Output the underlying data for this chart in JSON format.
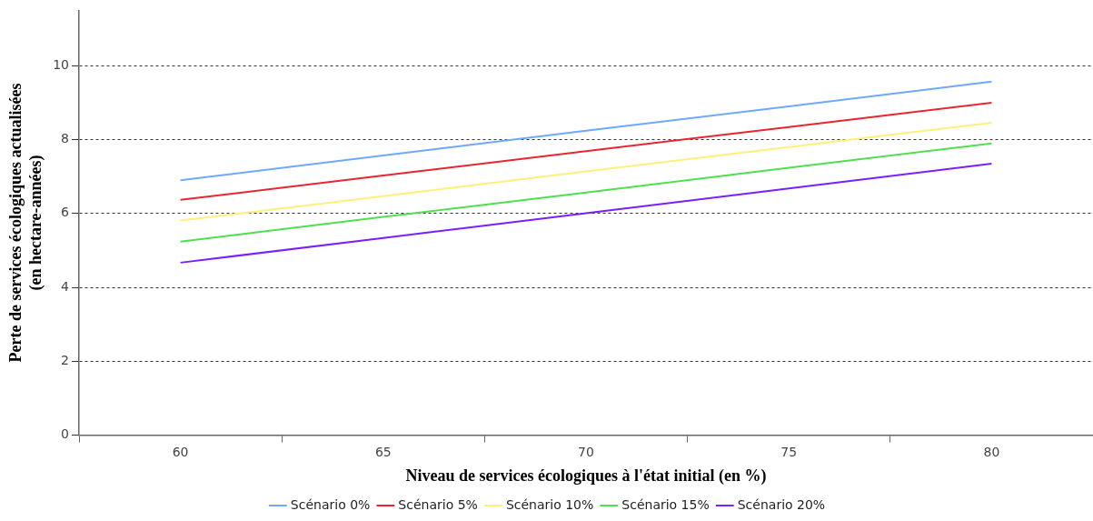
{
  "chart_data": {
    "type": "line",
    "xlabel": "Niveau de services écologiques à l'état initial (en %)",
    "ylabel": "Perte de services écologiques actualisées\n(en hectare-années)",
    "categories": [
      "60",
      "65",
      "70",
      "75",
      "80"
    ],
    "series": [
      {
        "name": "Scénario 0%",
        "color": "#6fa8ff",
        "values": [
          6.9,
          7.57,
          8.24,
          8.9,
          9.57
        ]
      },
      {
        "name": "Scénario 5%",
        "color": "#e8262f",
        "values": [
          6.37,
          7.03,
          7.69,
          8.34,
          9.0
        ]
      },
      {
        "name": "Scénario 10%",
        "color": "#fff07a",
        "values": [
          5.81,
          6.47,
          7.14,
          7.8,
          8.46
        ]
      },
      {
        "name": "Scénario 15%",
        "color": "#4fe04f",
        "values": [
          5.24,
          5.91,
          6.57,
          7.24,
          7.9
        ]
      },
      {
        "name": "Scénario 20%",
        "color": "#7a1fff",
        "values": [
          4.67,
          5.34,
          6.01,
          6.68,
          7.35
        ]
      }
    ],
    "ylim": [
      0,
      11.5
    ],
    "yticks": [
      0,
      2,
      4,
      6,
      8,
      10
    ],
    "grid": "y",
    "legend": "bottom",
    "marker": "none",
    "line_style": "solid"
  }
}
